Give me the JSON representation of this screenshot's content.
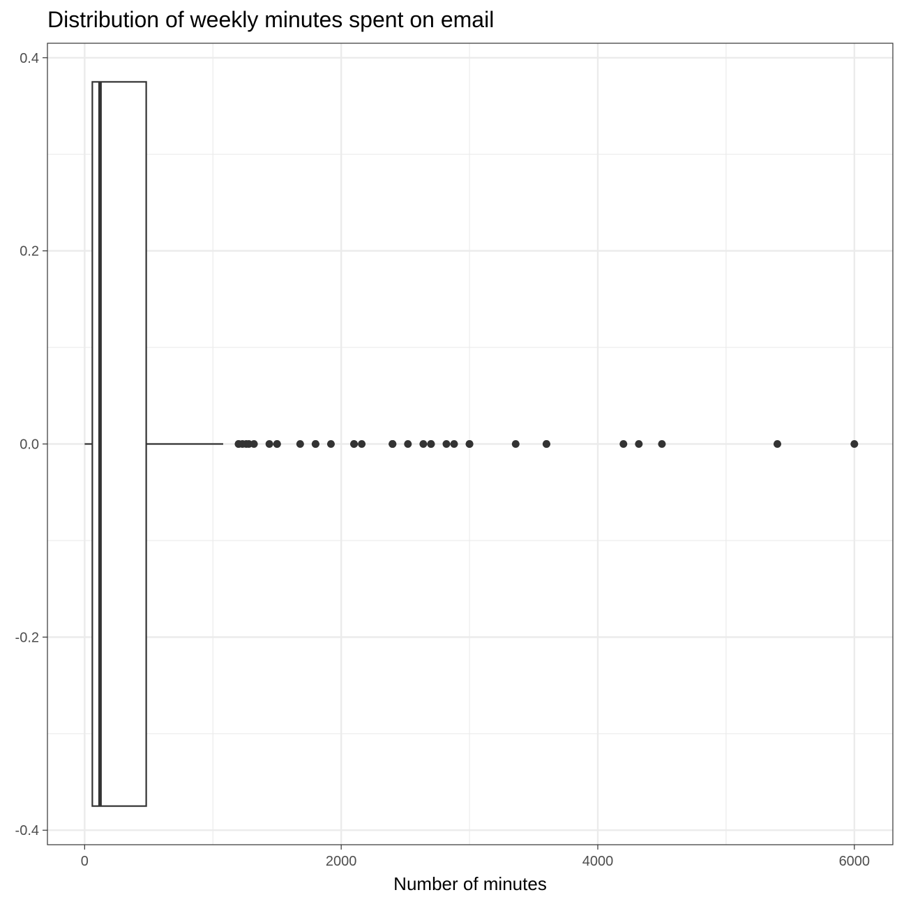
{
  "chart_data": {
    "type": "boxplot",
    "orientation": "horizontal",
    "title": "Distribution of weekly minutes spent on email",
    "xlabel": "Number of minutes",
    "ylabel": "",
    "x_ticks": [
      0,
      2000,
      4000,
      6000
    ],
    "x_tick_labels": [
      "0",
      "2000",
      "4000",
      "6000"
    ],
    "y_ticks": [
      -0.4,
      -0.2,
      0.0,
      0.2,
      0.4
    ],
    "y_tick_labels": [
      "-0.4",
      "-0.2",
      "0.0",
      "0.2",
      "0.4"
    ],
    "xlim": [
      -290,
      6300
    ],
    "ylim": [
      -0.415,
      0.415
    ],
    "grid": true,
    "box": {
      "center": 0.0,
      "halfwidth": 0.375,
      "whisker_low": 0,
      "q1": 60,
      "median": 120,
      "q3": 480,
      "whisker_high": 1080
    },
    "outliers": [
      1200,
      1200,
      1230,
      1260,
      1280,
      1320,
      1440,
      1500,
      1500,
      1680,
      1800,
      1800,
      1920,
      2100,
      2100,
      2160,
      2400,
      2400,
      2400,
      2520,
      2640,
      2700,
      2700,
      2820,
      2880,
      3000,
      3000,
      3360,
      3600,
      3600,
      4200,
      4320,
      4500,
      5400,
      6000
    ]
  }
}
